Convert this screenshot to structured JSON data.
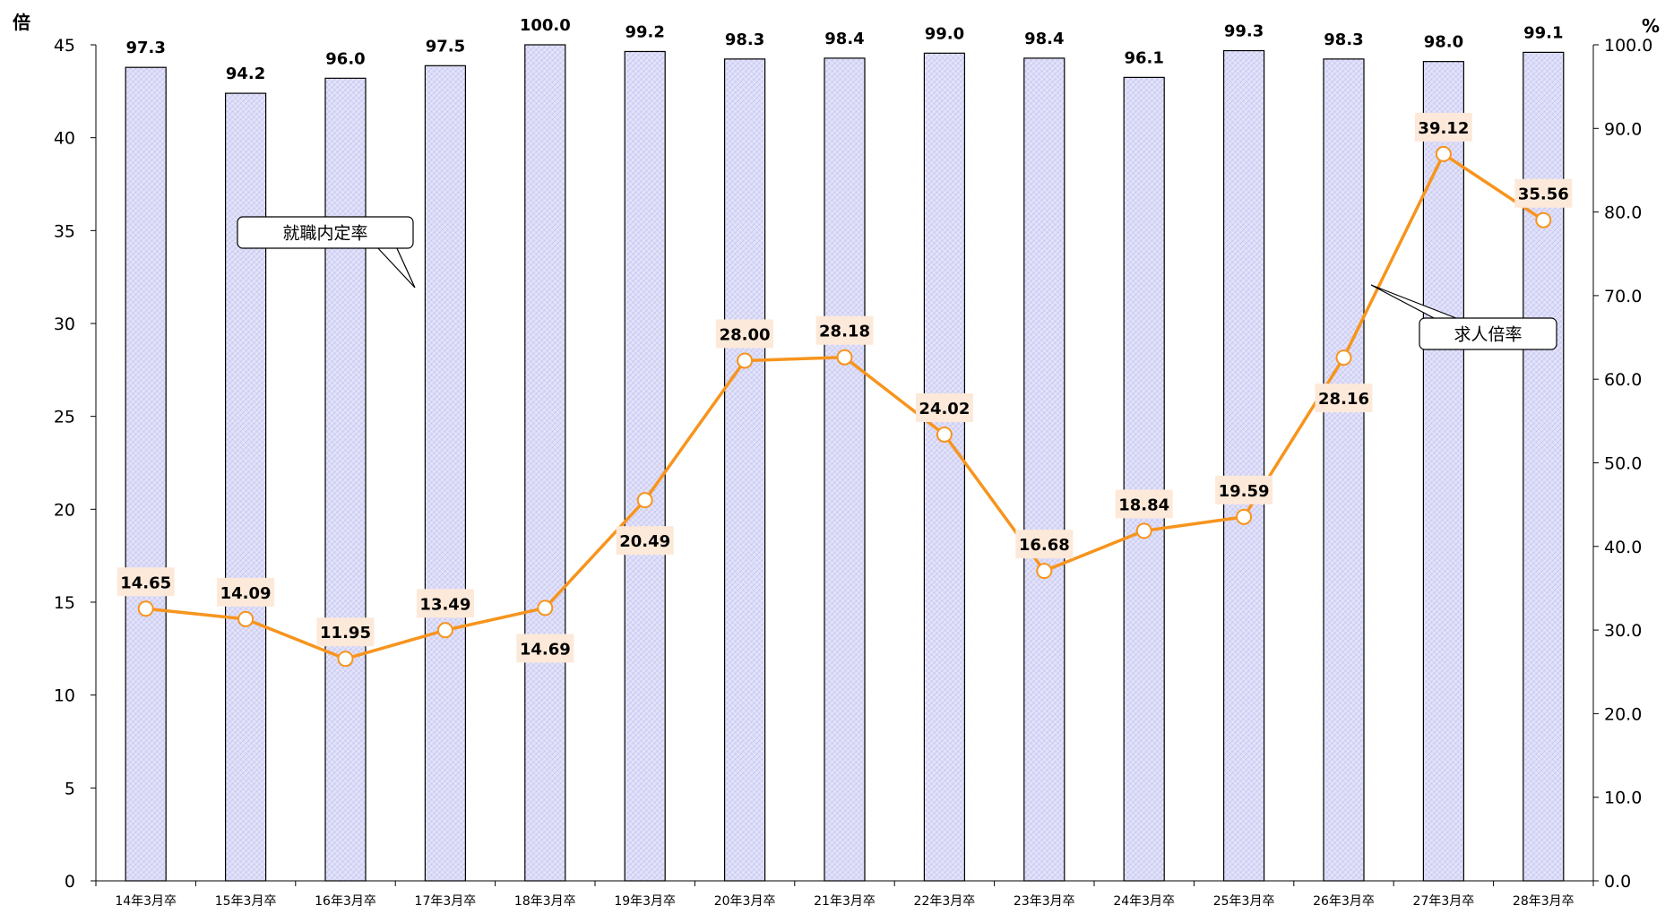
{
  "chart_data": {
    "type": "bar",
    "categories": [
      "14年3月卒",
      "15年3月卒",
      "16年3月卒",
      "17年3月卒",
      "18年3月卒",
      "19年3月卒",
      "20年3月卒",
      "21年3月卒",
      "22年3月卒",
      "23年3月卒",
      "24年3月卒",
      "25年3月卒",
      "26年3月卒",
      "27年3月卒",
      "28年3月卒"
    ],
    "series": [
      {
        "name": "就職内定率",
        "type": "bar",
        "axis": "right",
        "values": [
          97.3,
          94.2,
          96.0,
          97.5,
          100.0,
          99.2,
          98.3,
          98.4,
          99.0,
          98.4,
          96.1,
          99.3,
          98.3,
          98.0,
          99.1
        ],
        "labels": [
          "97.3",
          "94.2",
          "96.0",
          "97.5",
          "100.0",
          "99.2",
          "98.3",
          "98.4",
          "99.0",
          "98.4",
          "96.1",
          "99.3",
          "98.3",
          "98.0",
          "99.1"
        ],
        "color": "#d6d6f7"
      },
      {
        "name": "求人倍率",
        "type": "line",
        "axis": "left",
        "values": [
          14.65,
          14.09,
          11.95,
          13.49,
          14.69,
          20.49,
          28.0,
          28.18,
          24.02,
          16.68,
          18.84,
          19.59,
          28.16,
          39.12,
          35.56
        ],
        "labels": [
          "14.65",
          "14.09",
          "11.95",
          "13.49",
          "14.69",
          "20.49",
          "28.00",
          "28.18",
          "24.02",
          "16.68",
          "18.84",
          "19.59",
          "28.16",
          "39.12",
          "35.56"
        ],
        "color": "#f7941d"
      }
    ],
    "y_left": {
      "unit": "倍",
      "ylim": [
        0,
        45
      ],
      "ticks": [
        "0",
        "5",
        "10",
        "15",
        "20",
        "25",
        "30",
        "35",
        "40",
        "45"
      ]
    },
    "y_right": {
      "unit": "%",
      "ylim": [
        0,
        100
      ],
      "ticks": [
        "0.0",
        "10.0",
        "20.0",
        "30.0",
        "40.0",
        "50.0",
        "60.0",
        "70.0",
        "80.0",
        "90.0",
        "100.0"
      ]
    },
    "grid": false
  }
}
